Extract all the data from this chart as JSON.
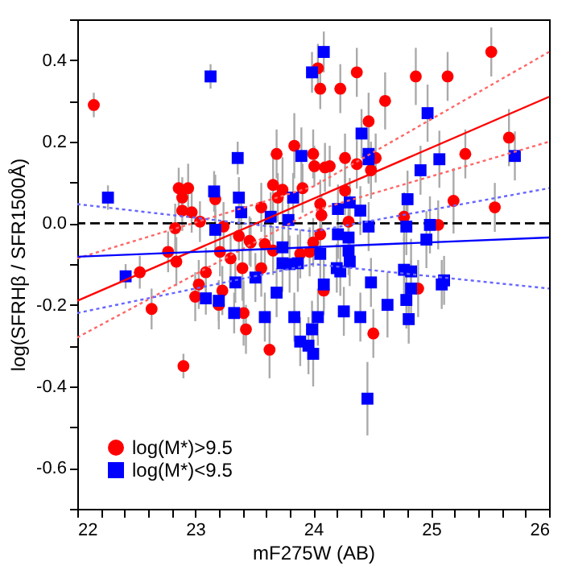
{
  "chart_data": {
    "type": "scatter",
    "xlabel": "mF275W (AB)",
    "ylabel": "log(SFRHβ / SFR1500Å)",
    "xlim": [
      22,
      26
    ],
    "ylim": [
      -0.7,
      0.5
    ],
    "xticks": [
      22,
      {
        "value": 22.2,
        "label": null
      },
      {
        "value": 22.4,
        "label": null
      },
      {
        "value": 22.6,
        "label": null
      },
      {
        "value": 22.8,
        "label": null
      },
      23,
      {
        "value": 23.2,
        "label": null
      },
      {
        "value": 23.4,
        "label": null
      },
      {
        "value": 23.6,
        "label": null
      },
      {
        "value": 23.8,
        "label": null
      },
      24,
      {
        "value": 24.2,
        "label": null
      },
      {
        "value": 24.4,
        "label": null
      },
      {
        "value": 24.6,
        "label": null
      },
      {
        "value": 24.8,
        "label": null
      },
      25,
      {
        "value": 25.2,
        "label": null
      },
      {
        "value": 25.4,
        "label": null
      },
      {
        "value": 25.6,
        "label": null
      },
      {
        "value": 25.8,
        "label": null
      },
      26
    ],
    "yticks": [
      {
        "value": -0.7,
        "label": null
      },
      -0.6,
      {
        "value": -0.5,
        "label": null
      },
      -0.4,
      {
        "value": -0.3,
        "label": null
      },
      -0.2,
      {
        "value": -0.1,
        "label": null
      },
      {
        "value": 0,
        "label": "0.0"
      },
      {
        "value": 0.1,
        "label": null
      },
      0.2,
      {
        "value": 0.3,
        "label": null
      },
      0.4,
      {
        "value": 0.5,
        "label": null
      }
    ],
    "grid": false,
    "legend": "bottom left",
    "ref_lines": [
      {
        "axis": "y",
        "value": 0,
        "color": "#000000",
        "line_style": "dashed"
      }
    ],
    "series": [
      {
        "name": "log(M*)>9.5",
        "color": "#ff0000",
        "marker": "circle",
        "x": [
          22.14,
          24.04,
          24.06,
          23.69,
          23.84,
          24.0,
          24.01,
          22.86,
          22.94,
          22.89,
          22.89,
          22.97,
          23.04,
          22.83,
          23.66,
          23.74,
          23.7,
          23.91,
          24.06,
          24.07,
          23.56,
          23.17,
          23.24,
          23.37,
          23.46,
          23.59,
          23.66,
          22.77,
          23.21,
          23.3,
          24.06,
          23.89,
          23.97,
          24.1,
          24.37,
          24.23,
          24.87,
          25.14,
          25.51,
          24.61,
          24.47,
          24.27,
          24.37,
          24.14,
          24.49,
          24.53,
          25.29,
          25.66,
          25.19,
          25.54,
          24.77,
          25.06,
          24.27,
          24.3,
          22.53,
          22.63,
          22.9,
          22.84,
          23.09,
          23.03,
          23.0,
          23.23,
          23.2,
          23.4,
          23.56,
          23.41,
          23.43,
          23.63,
          23.47,
          24.0,
          24.09,
          24.51,
          24.89
        ],
        "values": [
          0.29,
          0.38,
          0.33,
          0.17,
          0.19,
          0.17,
          0.14,
          0.086,
          0.086,
          0.063,
          0.031,
          0.027,
          0.004,
          -0.012,
          0.094,
          0.082,
          0.063,
          0.086,
          0.047,
          0.02,
          0.039,
          0.059,
          -0.008,
          -0.031,
          -0.043,
          -0.051,
          -0.067,
          -0.07,
          -0.07,
          -0.086,
          -0.027,
          -0.075,
          -0.07,
          0.137,
          0.37,
          0.33,
          0.36,
          0.36,
          0.42,
          0.3,
          0.25,
          0.16,
          0.145,
          0.14,
          0.13,
          0.16,
          0.17,
          0.21,
          0.055,
          0.039,
          0.016,
          -0.004,
          0.08,
          0.004,
          -0.12,
          -0.21,
          -0.35,
          -0.094,
          -0.12,
          -0.15,
          -0.18,
          -0.165,
          -0.2,
          -0.11,
          -0.11,
          -0.22,
          -0.26,
          -0.31,
          -0.047,
          -0.047,
          -0.165,
          -0.27,
          -0.16
        ],
        "errors": [
          0.03,
          0.06,
          0.05,
          0.06,
          0.08,
          0.06,
          0.05,
          0.05,
          0.06,
          0.05,
          0.05,
          0.05,
          0.05,
          0.06,
          0.07,
          0.08,
          0.06,
          0.06,
          0.06,
          0.05,
          0.06,
          0.06,
          0.06,
          0.06,
          0.06,
          0.06,
          0.06,
          0.05,
          0.06,
          0.06,
          0.06,
          0.06,
          0.06,
          0.06,
          0.06,
          0.06,
          0.07,
          0.06,
          0.06,
          0.07,
          0.07,
          0.06,
          0.06,
          0.05,
          0.07,
          0.06,
          0.06,
          0.07,
          0.08,
          0.06,
          0.06,
          0.06,
          0.06,
          0.06,
          0.04,
          0.05,
          0.03,
          0.06,
          0.06,
          0.06,
          0.06,
          0.06,
          0.06,
          0.08,
          0.07,
          0.08,
          0.06,
          0.07,
          0.06,
          0.06,
          0.06,
          0.06,
          0.07
        ]
      },
      {
        "name": "log(M*)<9.5",
        "color": "#0000ff",
        "marker": "square",
        "x": [
          22.26,
          23.13,
          23.36,
          23.16,
          23.37,
          23.39,
          23.17,
          23.64,
          23.79,
          23.83,
          23.9,
          23.74,
          23.99,
          24.09,
          24.06,
          24.41,
          24.47,
          24.47,
          24.97,
          24.91,
          25.07,
          25.71,
          24.8,
          24.21,
          24.31,
          24.4,
          24.47,
          24.79,
          24.99,
          24.96,
          24.21,
          24.3,
          24.3,
          22.41,
          23.09,
          23.2,
          23.33,
          23.34,
          23.51,
          23.59,
          23.69,
          23.74,
          23.8,
          23.87,
          23.84,
          23.89,
          23.96,
          24.0,
          23.99,
          24.04,
          24.09,
          24.2,
          24.23,
          24.49,
          24.26,
          24.4,
          24.63,
          24.77,
          24.83,
          24.83,
          24.79,
          24.81,
          25.09,
          25.11,
          24.46,
          24.31
        ],
        "values": [
          0.063,
          0.36,
          0.16,
          0.078,
          0.063,
          0.027,
          -0.016,
          0.016,
          0.008,
          0.063,
          0.165,
          -0.059,
          0.37,
          0.42,
          -0.075,
          0.22,
          0.17,
          0.157,
          0.27,
          0.13,
          0.157,
          0.165,
          0.059,
          0.035,
          0.051,
          0.031,
          -0.008,
          -0.008,
          -0.004,
          -0.04,
          -0.027,
          -0.035,
          -0.067,
          -0.13,
          -0.184,
          -0.19,
          -0.22,
          -0.145,
          -0.133,
          -0.23,
          -0.17,
          -0.098,
          -0.1,
          -0.098,
          -0.23,
          -0.29,
          -0.3,
          -0.32,
          -0.26,
          -0.23,
          -0.15,
          -0.11,
          -0.118,
          -0.145,
          -0.216,
          -0.23,
          -0.2,
          -0.114,
          -0.118,
          -0.16,
          -0.188,
          -0.235,
          -0.15,
          -0.14,
          -0.43,
          -0.094
        ],
        "errors": [
          0.03,
          0.03,
          0.04,
          0.05,
          0.05,
          0.05,
          0.05,
          0.06,
          0.06,
          0.06,
          0.07,
          0.06,
          0.05,
          0.05,
          0.06,
          0.06,
          0.07,
          0.06,
          0.07,
          0.06,
          0.07,
          0.06,
          0.07,
          0.06,
          0.06,
          0.06,
          0.06,
          0.07,
          0.07,
          0.07,
          0.06,
          0.06,
          0.06,
          0.03,
          0.04,
          0.05,
          0.05,
          0.05,
          0.06,
          0.06,
          0.06,
          0.07,
          0.07,
          0.07,
          0.06,
          0.06,
          0.07,
          0.08,
          0.07,
          0.07,
          0.06,
          0.06,
          0.06,
          0.06,
          0.06,
          0.06,
          0.08,
          0.08,
          0.08,
          0.07,
          0.07,
          0.06,
          0.06,
          0.06,
          0.09,
          0.06
        ]
      },
      {
        "type": "line",
        "color": "#ff0000",
        "line_style": "solid",
        "x": [
          22,
          26
        ],
        "values": [
          -0.19,
          0.31
        ]
      },
      {
        "type": "line",
        "color": "#ff6666",
        "line_style": "dotted",
        "x": [
          22,
          24,
          26
        ],
        "values": [
          -0.086,
          0.09,
          0.42
        ]
      },
      {
        "type": "line",
        "color": "#ff6666",
        "line_style": "dotted",
        "x": [
          22,
          24,
          26
        ],
        "values": [
          -0.28,
          0.03,
          0.2
        ]
      },
      {
        "type": "line",
        "color": "#0000ff",
        "line_style": "solid",
        "x": [
          22,
          26
        ],
        "values": [
          -0.082,
          -0.035
        ]
      },
      {
        "type": "line",
        "color": "#6666ff",
        "line_style": "dotted",
        "x": [
          22,
          24,
          26
        ],
        "values": [
          0.047,
          -0.02,
          0.086
        ]
      },
      {
        "type": "line",
        "color": "#6666ff",
        "line_style": "dotted",
        "x": [
          22,
          24,
          26
        ],
        "values": [
          -0.22,
          -0.1,
          -0.16
        ]
      }
    ]
  }
}
